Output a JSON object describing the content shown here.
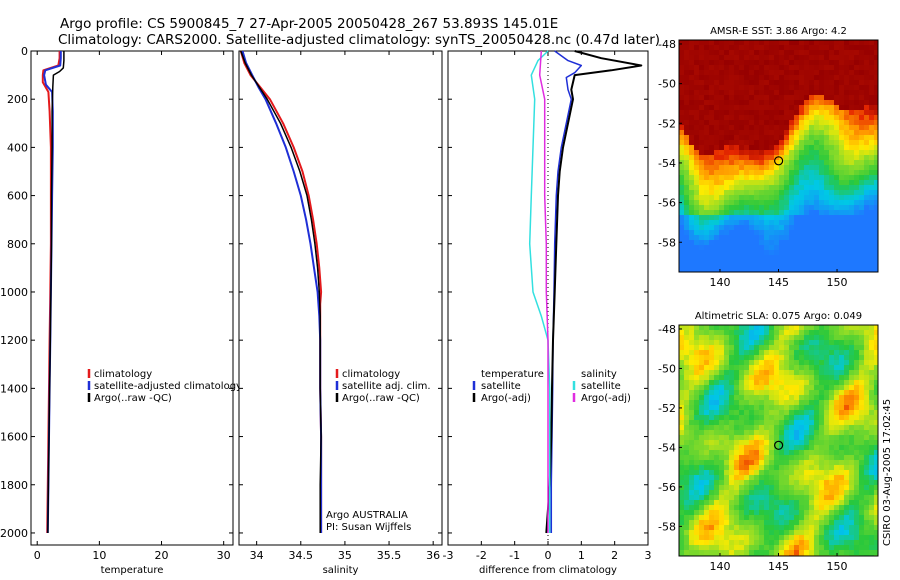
{
  "header": {
    "title_line1": "Argo profile: CS 5900845_7 27-Apr-2005 20050428_267 53.893S 145.01E",
    "title_line2": "Climatology: CARS2000. Satellite-adjusted climatology: synTS_20050428.nc (0.47d later)"
  },
  "credit": "CSIRO 03-Aug-2005 17:02:45",
  "colors": {
    "climatology": "#e41a1c",
    "satellite": "#1f2fd6",
    "argo": "#000000",
    "salinity_diff": "#33e0e0",
    "salinity_sat_diff": "#e02ce0"
  },
  "chart_data": [
    {
      "type": "line",
      "xlabel": "temperature",
      "ylabel": "",
      "xlim": [
        -1,
        31.5
      ],
      "ylim": [
        2050,
        0
      ],
      "xticks": [
        0,
        10,
        20,
        30
      ],
      "yticks": [
        0,
        200,
        400,
        600,
        800,
        1000,
        1200,
        1400,
        1600,
        1800,
        2000
      ],
      "legend": {
        "placement": "center-right",
        "entries": [
          "climatology",
          "satellite-adjusted climatology",
          "Argo(..raw -QC)"
        ]
      },
      "series": [
        {
          "name": "climatology",
          "color": "#e41a1c",
          "width": 2,
          "points": [
            [
              3.6,
              0
            ],
            [
              3.6,
              30
            ],
            [
              3.4,
              60
            ],
            [
              1.0,
              80
            ],
            [
              0.9,
              100
            ],
            [
              0.9,
              130
            ],
            [
              1.8,
              170
            ],
            [
              2.0,
              250
            ],
            [
              2.2,
              400
            ],
            [
              2.2,
              600
            ],
            [
              2.2,
              800
            ],
            [
              2.1,
              1000
            ],
            [
              2.0,
              1200
            ],
            [
              1.9,
              1400
            ],
            [
              1.8,
              1600
            ],
            [
              1.7,
              1800
            ],
            [
              1.6,
              2000
            ]
          ]
        },
        {
          "name": "satellite-adjusted climatology",
          "color": "#1f2fd6",
          "width": 2,
          "points": [
            [
              3.8,
              0
            ],
            [
              3.8,
              30
            ],
            [
              3.7,
              60
            ],
            [
              1.3,
              80
            ],
            [
              1.1,
              100
            ],
            [
              1.4,
              140
            ],
            [
              2.4,
              170
            ],
            [
              2.5,
              250
            ],
            [
              2.5,
              400
            ],
            [
              2.4,
              600
            ],
            [
              2.3,
              800
            ],
            [
              2.2,
              1000
            ],
            [
              2.1,
              1200
            ],
            [
              2.0,
              1400
            ],
            [
              1.9,
              1600
            ],
            [
              1.8,
              1800
            ],
            [
              1.7,
              2000
            ]
          ]
        },
        {
          "name": "Argo(..raw -QC)",
          "color": "#000000",
          "width": 1.5,
          "points": [
            [
              4.3,
              0
            ],
            [
              4.3,
              40
            ],
            [
              4.2,
              70
            ],
            [
              3.6,
              85
            ],
            [
              2.6,
              100
            ],
            [
              2.5,
              150
            ],
            [
              2.4,
              250
            ],
            [
              2.4,
              400
            ],
            [
              2.3,
              600
            ],
            [
              2.3,
              800
            ],
            [
              2.2,
              1000
            ],
            [
              2.1,
              1200
            ],
            [
              2.0,
              1400
            ],
            [
              1.9,
              1600
            ],
            [
              1.8,
              1800
            ],
            [
              1.7,
              2000
            ]
          ]
        }
      ]
    },
    {
      "type": "line",
      "xlabel": "salinity",
      "ylabel": "",
      "xlim": [
        33.8,
        36.1
      ],
      "ylim": [
        2050,
        0
      ],
      "xticks": [
        34,
        34.5,
        35,
        35.5,
        36
      ],
      "legend": {
        "placement": "center-right",
        "entries": [
          "climatology",
          "satellite adj. clim.",
          "Argo(..raw -QC)"
        ]
      },
      "annotations": [
        "Argo AUSTRALIA",
        "PI: Susan Wijffels"
      ],
      "series": [
        {
          "name": "climatology",
          "color": "#e41a1c",
          "width": 2,
          "points": [
            [
              33.82,
              0
            ],
            [
              33.86,
              50
            ],
            [
              33.93,
              100
            ],
            [
              34.04,
              150
            ],
            [
              34.15,
              200
            ],
            [
              34.3,
              300
            ],
            [
              34.42,
              400
            ],
            [
              34.52,
              500
            ],
            [
              34.59,
              600
            ],
            [
              34.64,
              700
            ],
            [
              34.68,
              800
            ],
            [
              34.71,
              900
            ],
            [
              34.73,
              1000
            ],
            [
              34.72,
              1050
            ],
            [
              34.72,
              1200
            ],
            [
              34.72,
              1400
            ],
            [
              34.73,
              1600
            ],
            [
              34.73,
              1800
            ],
            [
              34.73,
              2000
            ]
          ]
        },
        {
          "name": "satellite adj. clim.",
          "color": "#1f2fd6",
          "width": 2,
          "points": [
            [
              33.84,
              0
            ],
            [
              33.88,
              50
            ],
            [
              33.95,
              100
            ],
            [
              34.02,
              150
            ],
            [
              34.1,
              200
            ],
            [
              34.22,
              300
            ],
            [
              34.33,
              400
            ],
            [
              34.42,
              500
            ],
            [
              34.5,
              600
            ],
            [
              34.56,
              700
            ],
            [
              34.61,
              800
            ],
            [
              34.65,
              900
            ],
            [
              34.69,
              1000
            ],
            [
              34.71,
              1100
            ],
            [
              34.72,
              1200
            ],
            [
              34.72,
              1400
            ],
            [
              34.73,
              1600
            ],
            [
              34.73,
              1800
            ],
            [
              34.73,
              2000
            ]
          ]
        },
        {
          "name": "Argo(..raw -QC)",
          "color": "#000000",
          "width": 1.5,
          "points": [
            [
              33.82,
              0
            ],
            [
              33.87,
              50
            ],
            [
              33.94,
              100
            ],
            [
              34.03,
              150
            ],
            [
              34.12,
              200
            ],
            [
              34.27,
              300
            ],
            [
              34.39,
              400
            ],
            [
              34.49,
              500
            ],
            [
              34.57,
              600
            ],
            [
              34.62,
              700
            ],
            [
              34.66,
              800
            ],
            [
              34.69,
              900
            ],
            [
              34.71,
              1000
            ],
            [
              34.72,
              1100
            ],
            [
              34.72,
              1200
            ],
            [
              34.72,
              1400
            ],
            [
              34.73,
              1600
            ],
            [
              34.72,
              1800
            ],
            [
              34.72,
              2000
            ]
          ]
        }
      ]
    },
    {
      "type": "line",
      "xlabel": "difference from climatology",
      "ylabel": "",
      "xlim": [
        -3,
        3
      ],
      "ylim": [
        2050,
        0
      ],
      "xticks": [
        -3,
        -2,
        -1,
        0,
        1,
        2,
        3
      ],
      "legend": {
        "placement": "center",
        "entries": [
          "temperature",
          "satellite",
          "Argo(-adj)",
          "salinity",
          "satellite",
          "Argo(-adj)"
        ]
      },
      "series": [
        {
          "name": "temperature",
          "color": "#000000",
          "width": 0,
          "points": []
        },
        {
          "name": "satellite",
          "color": "#1f2fd6",
          "width": 1.5,
          "points": [
            [
              0.2,
              0
            ],
            [
              0.6,
              40
            ],
            [
              1.0,
              60
            ],
            [
              0.8,
              90
            ],
            [
              0.55,
              110
            ],
            [
              0.6,
              160
            ],
            [
              0.7,
              200
            ],
            [
              0.55,
              300
            ],
            [
              0.4,
              400
            ],
            [
              0.3,
              500
            ],
            [
              0.25,
              600
            ],
            [
              0.2,
              800
            ],
            [
              0.18,
              1000
            ],
            [
              0.15,
              1200
            ],
            [
              0.14,
              1400
            ],
            [
              0.12,
              1600
            ],
            [
              0.1,
              1800
            ],
            [
              0.1,
              2000
            ]
          ]
        },
        {
          "name": "Argo(-adj)",
          "color": "#000000",
          "width": 2,
          "points": [
            [
              0.8,
              0
            ],
            [
              1.6,
              30
            ],
            [
              2.8,
              60
            ],
            [
              1.9,
              80
            ],
            [
              0.8,
              100
            ],
            [
              0.7,
              160
            ],
            [
              0.75,
              200
            ],
            [
              0.6,
              300
            ],
            [
              0.45,
              400
            ],
            [
              0.35,
              500
            ],
            [
              0.3,
              600
            ],
            [
              0.25,
              800
            ],
            [
              0.2,
              1000
            ],
            [
              0.15,
              1200
            ],
            [
              0.12,
              1400
            ],
            [
              0.1,
              1600
            ],
            [
              0.05,
              1800
            ],
            [
              -0.05,
              2000
            ]
          ]
        },
        {
          "name": "salinity",
          "color": "#33e0e0",
          "width": 1.5,
          "points": [
            [
              0,
              0
            ],
            [
              -0.3,
              40
            ],
            [
              -0.5,
              100
            ],
            [
              -0.4,
              200
            ],
            [
              -0.45,
              400
            ],
            [
              -0.5,
              600
            ],
            [
              -0.55,
              800
            ],
            [
              -0.45,
              1000
            ],
            [
              -0.2,
              1100
            ],
            [
              0.0,
              1200
            ],
            [
              0.05,
              1400
            ],
            [
              0.05,
              1600
            ],
            [
              0.05,
              1800
            ],
            [
              0.05,
              2000
            ]
          ]
        },
        {
          "name": "satellite",
          "color": "#e02ce0",
          "width": 1.5,
          "points": [
            [
              -0.2,
              0
            ],
            [
              -0.25,
              100
            ],
            [
              -0.1,
              200
            ],
            [
              -0.1,
              400
            ],
            [
              -0.1,
              600
            ],
            [
              -0.05,
              800
            ],
            [
              -0.05,
              1000
            ],
            [
              0,
              1200
            ],
            [
              0,
              1400
            ],
            [
              0,
              1600
            ],
            [
              0,
              1800
            ],
            [
              0,
              2000
            ]
          ]
        }
      ]
    },
    {
      "type": "heatmap",
      "title": "AMSR-E SST: 3.86 Argo: 4.2",
      "xlim": [
        136.5,
        153.5
      ],
      "ylim": [
        -59.5,
        -47.8
      ],
      "xticks": [
        140,
        145,
        150
      ],
      "yticks": [
        -48,
        -50,
        -52,
        -54,
        -56,
        -58
      ],
      "marker": {
        "lon": 145.01,
        "lat": -53.893
      }
    },
    {
      "type": "heatmap",
      "title": "Altimetric SLA: 0.075 Argo: 0.049",
      "xlim": [
        136.5,
        153.5
      ],
      "ylim": [
        -59.5,
        -47.8
      ],
      "xticks": [
        140,
        145,
        150
      ],
      "yticks": [
        -48,
        -50,
        -52,
        -54,
        -56,
        -58
      ],
      "marker": {
        "lon": 145.01,
        "lat": -53.893
      }
    }
  ]
}
